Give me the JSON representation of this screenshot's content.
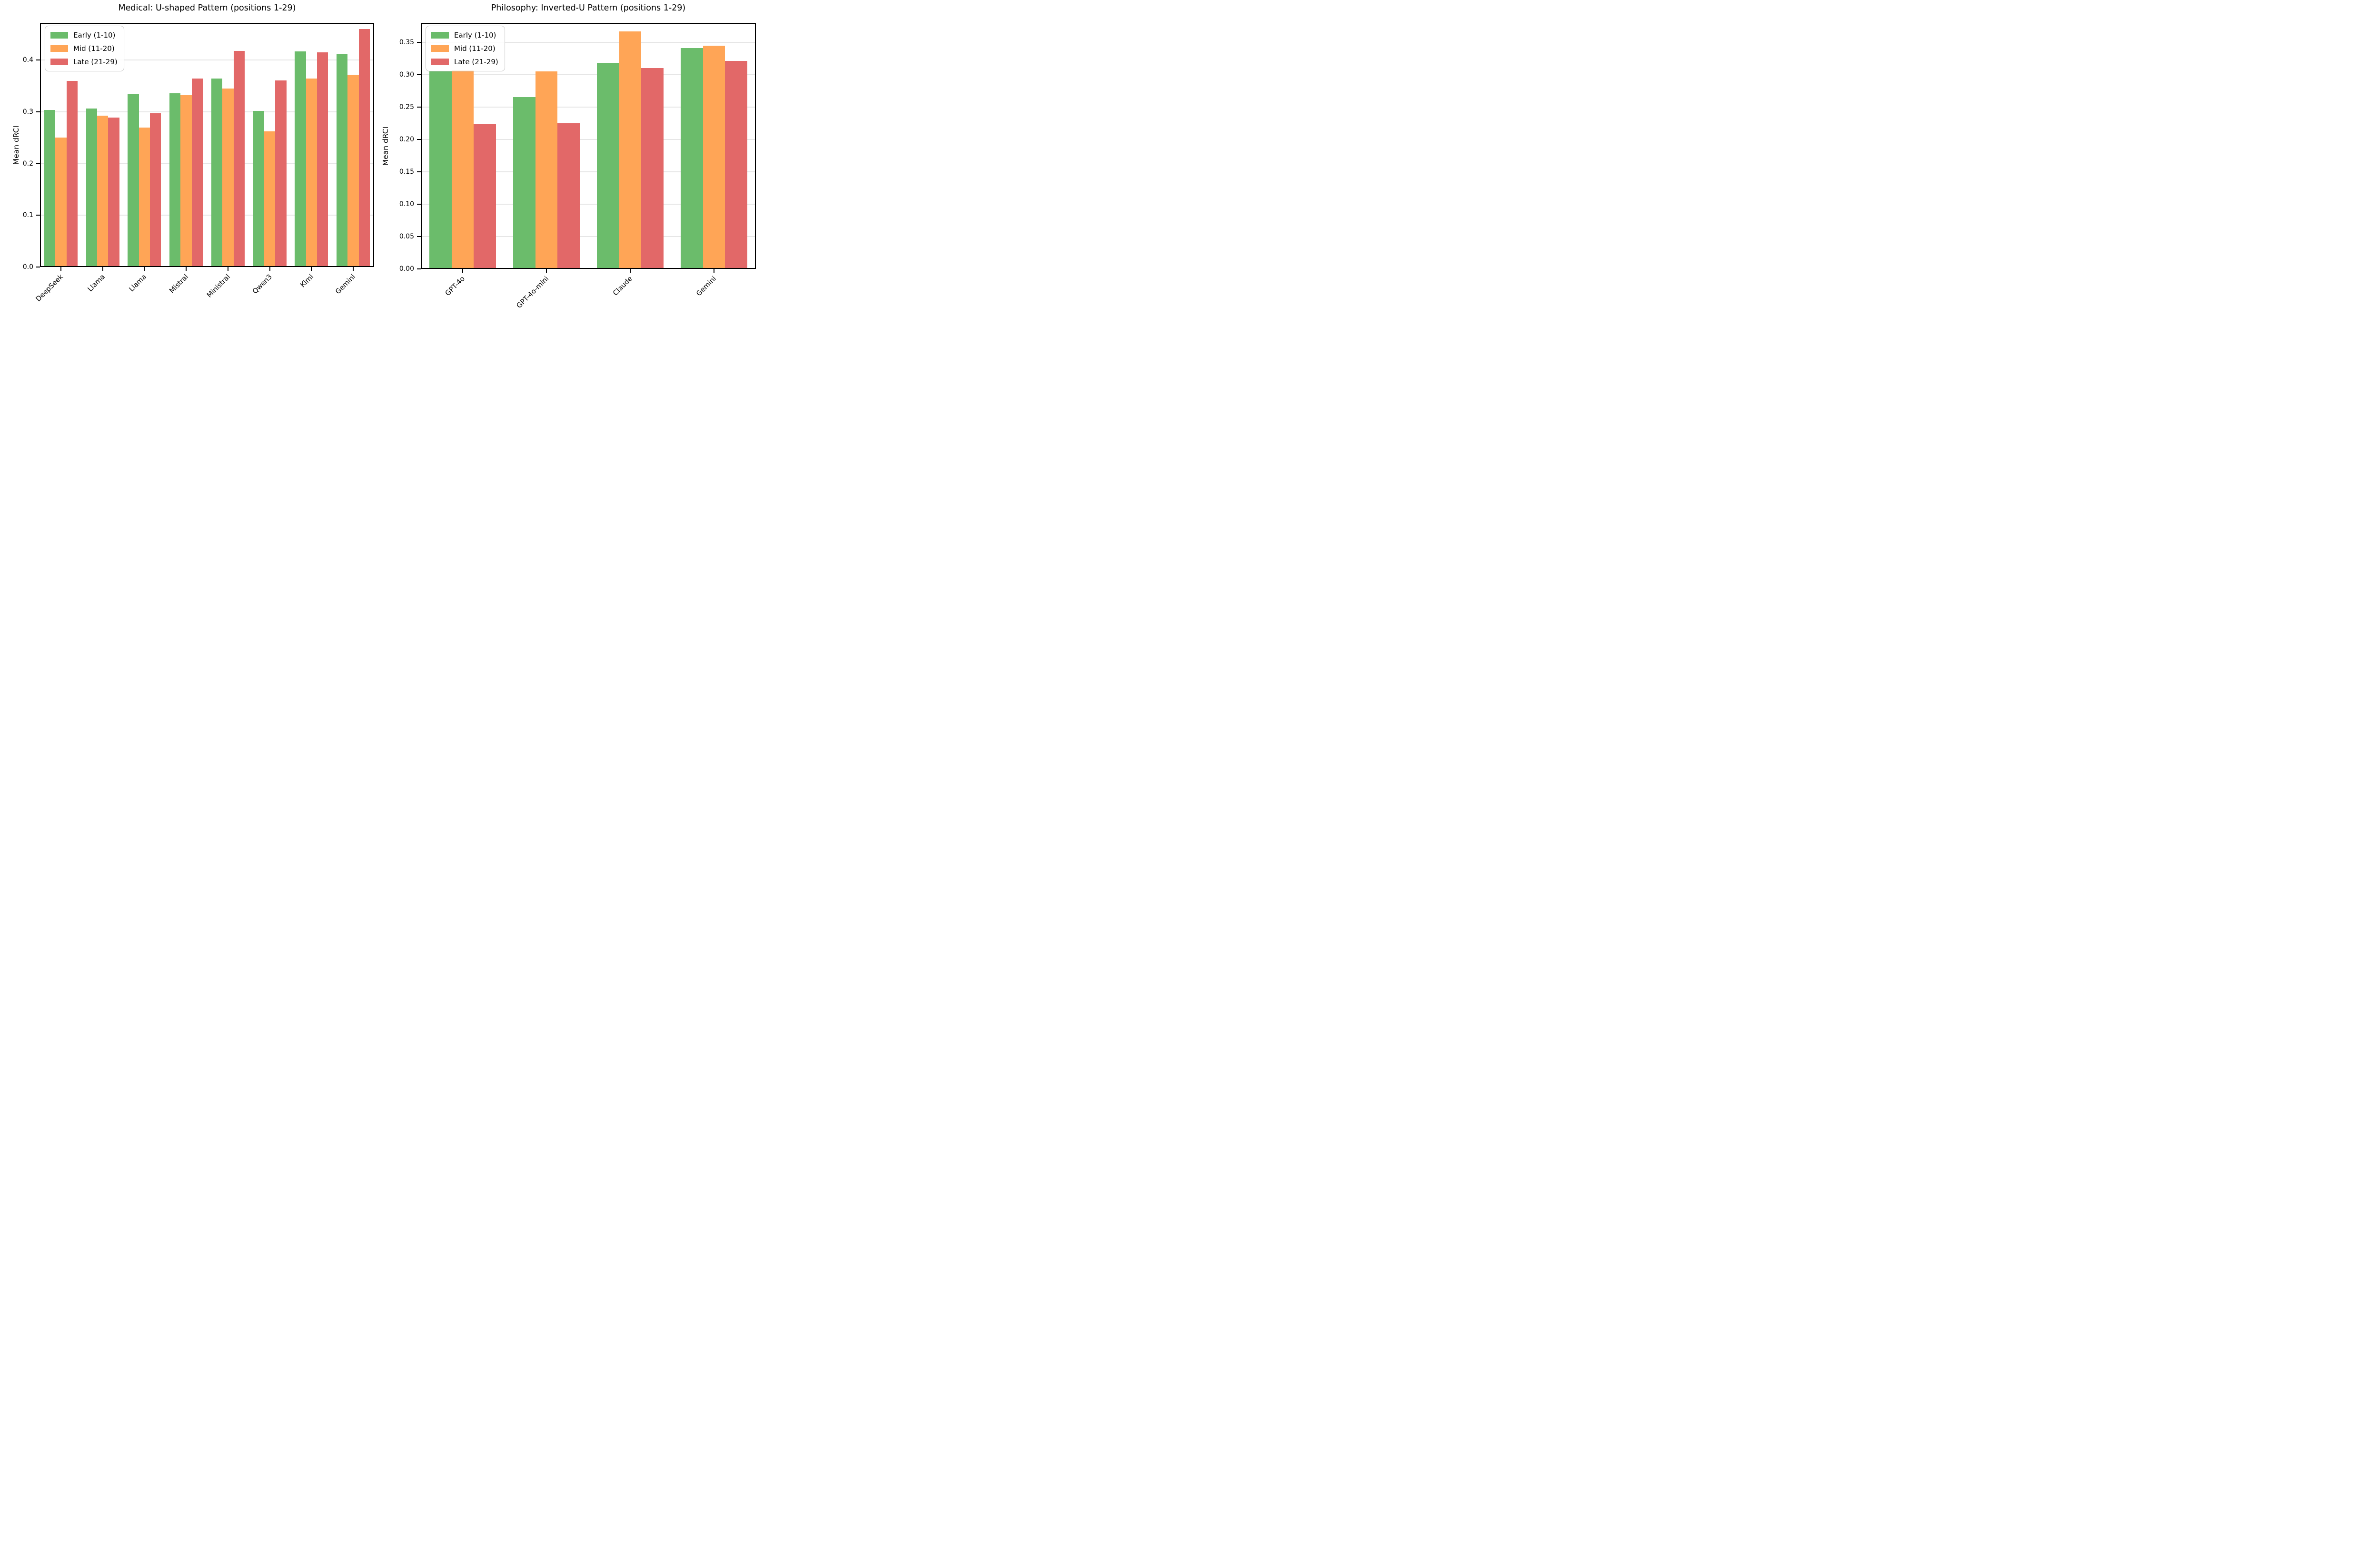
{
  "figure": {
    "background": "#ffffff",
    "description": "Two grouped bar charts comparing Mean dRCI across document positions"
  },
  "colors": {
    "early": "#6bbc6b",
    "mid": "#ffa556",
    "late": "#e26868",
    "grid": "#e6e6e6",
    "spine": "#000000",
    "legend_border": "#cccccc"
  },
  "chart_data": [
    {
      "type": "bar",
      "title": "Medical: U-shaped Pattern (positions 1-29)",
      "xlabel": "",
      "ylabel": "Mean dRCI",
      "categories": [
        "DeepSeek",
        "Llama",
        "Llama",
        "Mistral",
        "Ministral",
        "Qwen3",
        "Kimi",
        "Gemini"
      ],
      "series": [
        {
          "name": "Early (1-10)",
          "color": "#6bbc6b",
          "values": [
            0.304,
            0.306,
            0.334,
            0.336,
            0.364,
            0.302,
            0.417,
            0.411
          ]
        },
        {
          "name": "Mid (11-20)",
          "color": "#ffa556",
          "values": [
            0.25,
            0.293,
            0.27,
            0.332,
            0.345,
            0.262,
            0.364,
            0.372
          ]
        },
        {
          "name": "Late (21-29)",
          "color": "#e26868",
          "values": [
            0.36,
            0.289,
            0.297,
            0.364,
            0.418,
            0.361,
            0.415,
            0.46
          ]
        }
      ],
      "yticks": [
        0.0,
        0.1,
        0.2,
        0.3,
        0.4
      ],
      "ytick_labels": [
        "0.0",
        "0.1",
        "0.2",
        "0.3",
        "0.4"
      ],
      "ylim": [
        0,
        0.472
      ],
      "grid": "horizontal",
      "legend_position": "upper left",
      "xtick_rotation": 45
    },
    {
      "type": "bar",
      "title": "Philosophy: Inverted-U Pattern (positions 1-29)",
      "xlabel": "",
      "ylabel": "Mean dRCI",
      "categories": [
        "GPT-4o",
        "GPT-4o-mini",
        "Claude",
        "Gemini"
      ],
      "series": [
        {
          "name": "Early (1-10)",
          "color": "#6bbc6b",
          "values": [
            0.305,
            0.265,
            0.318,
            0.341
          ]
        },
        {
          "name": "Mid (11-20)",
          "color": "#ffa556",
          "values": [
            0.307,
            0.305,
            0.367,
            0.345
          ]
        },
        {
          "name": "Late (21-29)",
          "color": "#e26868",
          "values": [
            0.224,
            0.225,
            0.31,
            0.321
          ]
        }
      ],
      "yticks": [
        0.0,
        0.05,
        0.1,
        0.15,
        0.2,
        0.25,
        0.3,
        0.35
      ],
      "ytick_labels": [
        "0.00",
        "0.05",
        "0.10",
        "0.15",
        "0.20",
        "0.25",
        "0.30",
        "0.35"
      ],
      "ylim": [
        0,
        0.38
      ],
      "grid": "horizontal",
      "legend_position": "upper left",
      "xtick_rotation": 45
    }
  ]
}
